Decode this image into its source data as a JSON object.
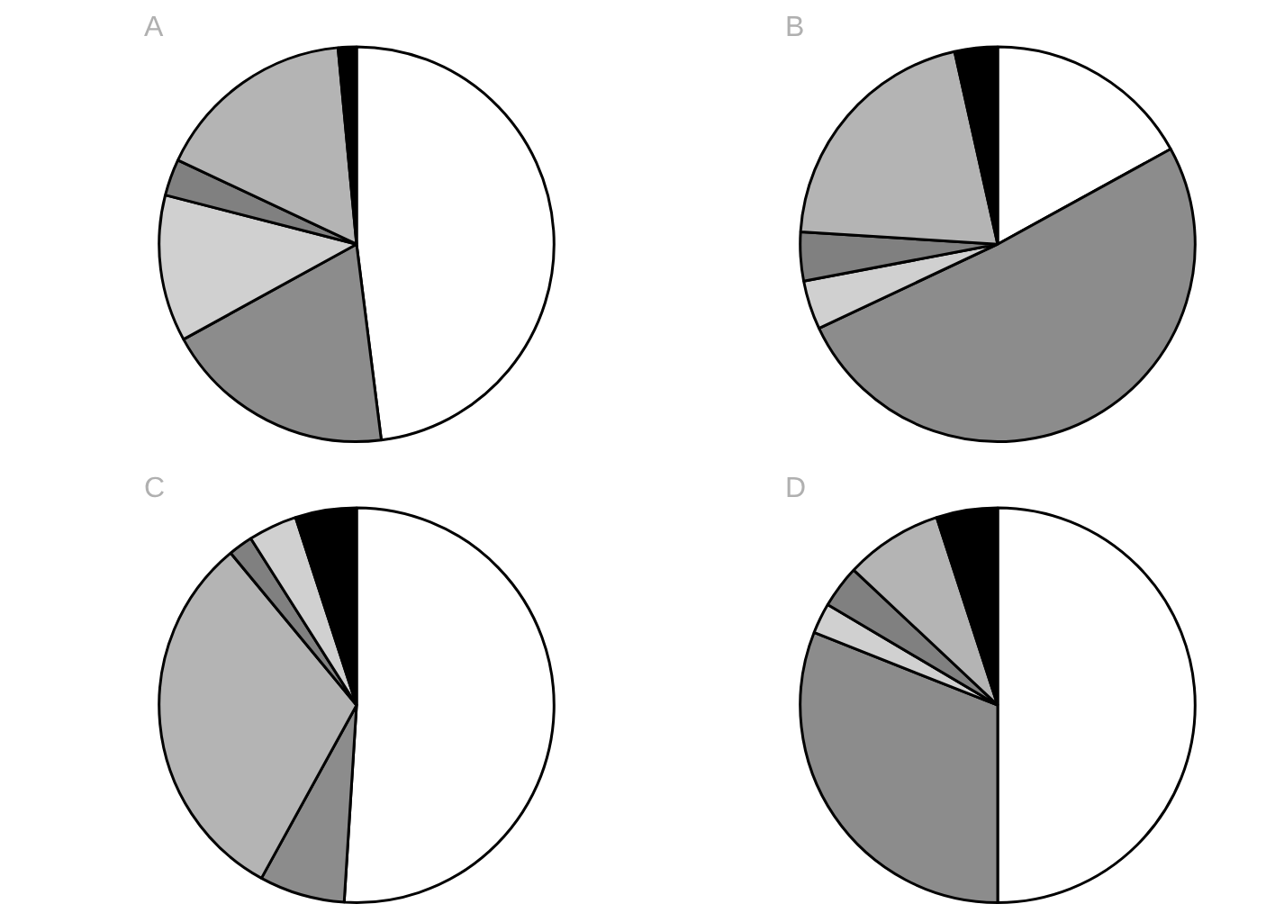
{
  "chart_data": [
    {
      "type": "pie",
      "title": "A",
      "categories": [
        null,
        null,
        null,
        null,
        null,
        null
      ],
      "values": [
        48,
        19,
        12,
        3,
        16.5,
        1.5
      ],
      "colors": [
        "#ffffff",
        "#8c8c8c",
        "#d0d0d0",
        "#808080",
        "#b4b4b4",
        "#000000"
      ],
      "legend": false
    },
    {
      "type": "pie",
      "title": "B",
      "categories": [
        null,
        null,
        null,
        null,
        null,
        null
      ],
      "values": [
        17,
        51,
        4,
        4,
        20.5,
        3.5
      ],
      "colors": [
        "#ffffff",
        "#8c8c8c",
        "#d0d0d0",
        "#808080",
        "#b4b4b4",
        "#000000"
      ],
      "legend": false
    },
    {
      "type": "pie",
      "title": "C",
      "categories": [
        null,
        null,
        null,
        null,
        null,
        null
      ],
      "values": [
        51,
        7,
        31,
        2,
        4,
        5
      ],
      "colors": [
        "#ffffff",
        "#8c8c8c",
        "#b4b4b4",
        "#808080",
        "#d0d0d0",
        "#000000"
      ],
      "legend": false
    },
    {
      "type": "pie",
      "title": "D",
      "categories": [
        null,
        null,
        null,
        null,
        null,
        null
      ],
      "values": [
        50,
        31,
        2.5,
        3.5,
        8,
        5
      ],
      "colors": [
        "#ffffff",
        "#8c8c8c",
        "#d0d0d0",
        "#808080",
        "#b4b4b4",
        "#000000"
      ],
      "legend": false
    }
  ]
}
